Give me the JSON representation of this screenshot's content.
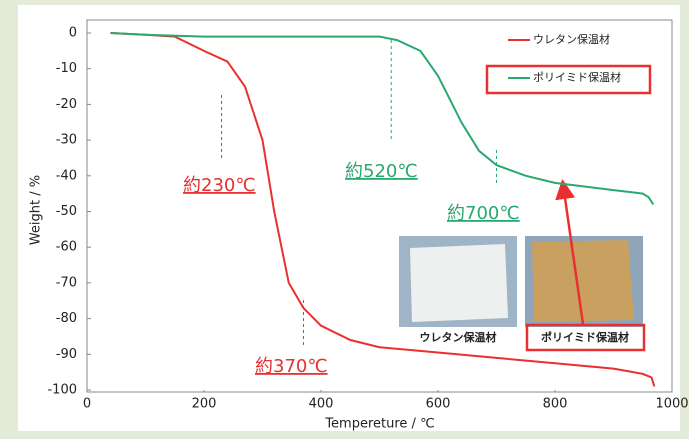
{
  "chart_data": {
    "type": "line",
    "y_label": "Weight / %",
    "x_label": "Tempereture / ℃",
    "xlim": [
      0,
      1000
    ],
    "xticks": [
      0,
      200,
      400,
      600,
      800,
      1000
    ],
    "ylim": [
      -100,
      0
    ],
    "yticks": [
      0,
      -10,
      -20,
      -30,
      -40,
      -50,
      -60,
      -70,
      -80,
      -90,
      -100
    ],
    "grid": false,
    "series": [
      {
        "name": "ウレタン保温材",
        "color": "#e8302f",
        "x": [
          40,
          100,
          150,
          200,
          240,
          270,
          300,
          320,
          345,
          370,
          400,
          450,
          500,
          600,
          700,
          800,
          900,
          950,
          965,
          970
        ],
        "values": [
          0,
          -0.5,
          -1,
          -5,
          -8,
          -15,
          -30,
          -50,
          -70,
          -77,
          -82,
          -86,
          -88,
          -89.5,
          -91,
          -92.5,
          -94,
          -95.5,
          -96.5,
          -99
        ]
      },
      {
        "name": "ポリイミド保温材",
        "color": "#2aa870",
        "x": [
          40,
          100,
          200,
          300,
          400,
          500,
          530,
          570,
          600,
          640,
          670,
          700,
          750,
          800,
          850,
          900,
          950,
          960,
          968
        ],
        "values": [
          0,
          -0.5,
          -1,
          -1,
          -1,
          -1,
          -2,
          -5,
          -12,
          -25,
          -33,
          -37,
          -40,
          -42,
          -43,
          -44,
          -45,
          -46,
          -48
        ]
      }
    ],
    "annotations": [
      {
        "value": 230,
        "label": "約230℃",
        "series": 0
      },
      {
        "value": 370,
        "label": "約370℃",
        "series": 0
      },
      {
        "value": 520,
        "label": "約520℃",
        "series": 1
      },
      {
        "value": 700,
        "label": "約700℃",
        "series": 1
      }
    ],
    "image_captions": [
      "ウレタン保温材",
      "ポリイミド保温材"
    ]
  }
}
